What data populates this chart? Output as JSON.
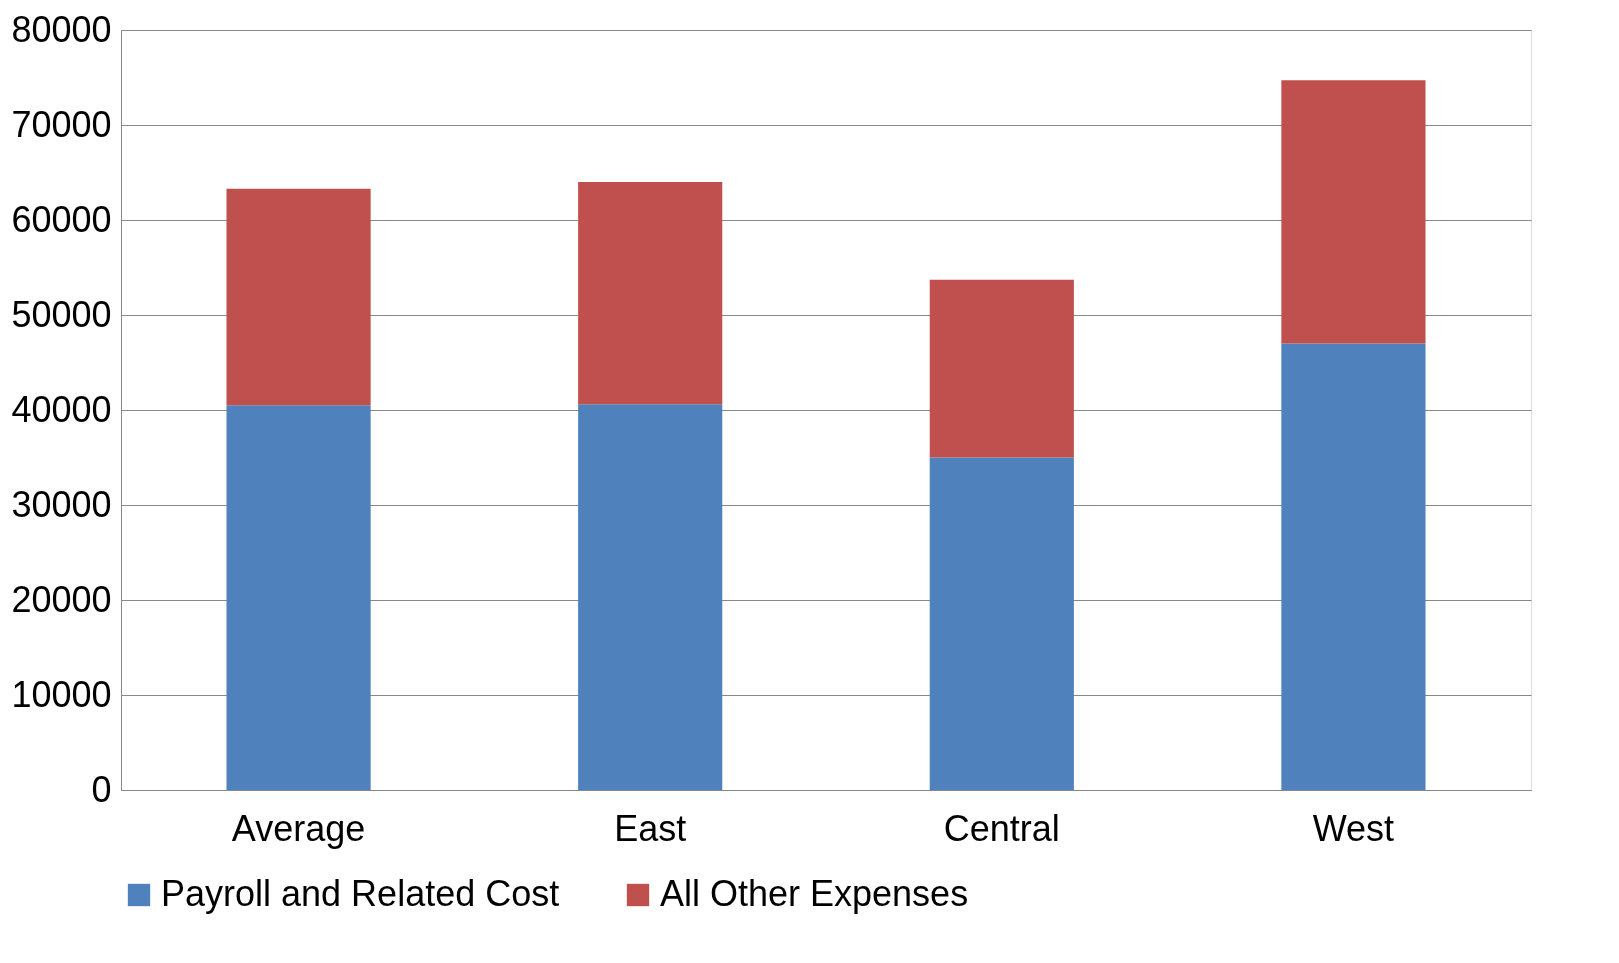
{
  "chart_data": {
    "type": "bar",
    "stacked": true,
    "categories": [
      "Average",
      "East",
      "Central",
      "West"
    ],
    "series": [
      {
        "name": "Payroll and Related Cost",
        "color": "#4f81bd",
        "values": [
          40500,
          40600,
          35000,
          47000
        ]
      },
      {
        "name": "All Other Expenses",
        "color": "#c0504d",
        "values": [
          22800,
          23400,
          18700,
          27700
        ]
      }
    ],
    "ylim": [
      0,
      80000
    ],
    "yticks": [
      0,
      10000,
      20000,
      30000,
      40000,
      50000,
      60000,
      70000,
      80000
    ],
    "grid": "y",
    "legend": "bottom"
  }
}
